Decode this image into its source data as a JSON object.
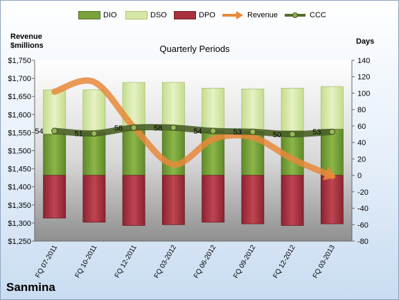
{
  "chart_data": {
    "type": "bar",
    "subtitle": "Quarterly Periods",
    "company": "Sanmina",
    "left_axis_label_line1": "Revenue",
    "left_axis_label_line2": "$millions",
    "right_axis_label": "Days",
    "categories": [
      "FQ 07-2011",
      "FQ 10-2011",
      "FQ 12-2011",
      "FQ 03-2012",
      "FQ 06-2012",
      "FQ 09-2012",
      "FQ 12-2012",
      "FQ 03-2013"
    ],
    "left_axis": {
      "min": 1250,
      "max": 1750,
      "step": 50,
      "tick_labels": [
        "$1,250",
        "$1,300",
        "$1,350",
        "$1,400",
        "$1,450",
        "$1,500",
        "$1,550",
        "$1,600",
        "$1,650",
        "$1,700",
        "$1,750"
      ]
    },
    "right_axis": {
      "min": -80,
      "max": 140,
      "step": 20,
      "tick_labels": [
        "-80",
        "-60",
        "-40",
        "-20",
        "0",
        "20",
        "40",
        "60",
        "80",
        "100",
        "120",
        "140"
      ]
    },
    "series": [
      {
        "name": "DIO",
        "type": "stacked-bar",
        "axis": "right",
        "color": "#7aa23c",
        "values": [
          50,
          52,
          56,
          55,
          54,
          53,
          54,
          56
        ]
      },
      {
        "name": "DSO",
        "type": "stacked-bar",
        "axis": "right",
        "color": "#d6e8a6",
        "values": [
          54,
          52,
          57,
          58,
          52,
          52,
          52,
          52
        ]
      },
      {
        "name": "DPO",
        "type": "bar-negative",
        "axis": "right",
        "color": "#a8323d",
        "values": [
          -52,
          -57,
          -61,
          -60,
          -57,
          -59,
          -61,
          -59
        ]
      },
      {
        "name": "Revenue",
        "type": "line",
        "axis": "left",
        "color": "#e8883a",
        "values": [
          1663,
          1690,
          1565,
          1462,
          1532,
          1537,
          1477,
          1430
        ]
      },
      {
        "name": "CCC",
        "type": "line",
        "axis": "right",
        "color": "#556b2f",
        "values": [
          54,
          51,
          58,
          58,
          54,
          53,
          50,
          53
        ],
        "labels": [
          "54",
          "51",
          "58",
          "58",
          "54",
          "53",
          "50",
          "53"
        ]
      }
    ],
    "legend_position": "top",
    "grid": false
  }
}
